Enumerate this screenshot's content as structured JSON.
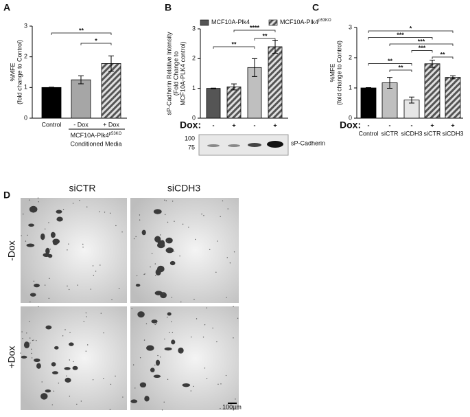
{
  "chart_data": [
    {
      "type": "bar",
      "panel_label": "A",
      "ylabel": [
        "%MFE",
        "(fold change to Control)"
      ],
      "categories": [
        "Control",
        "- Dox",
        "+ Dox"
      ],
      "values": [
        1,
        1.25,
        1.78
      ],
      "errors": [
        0.01,
        0.13,
        0.25
      ],
      "colors": [
        "#000000",
        "#a6a6a6",
        "#8c8c8c"
      ],
      "hatched": [
        false,
        false,
        true
      ],
      "ylim": [
        0,
        3
      ],
      "yticks": [
        0,
        1,
        2,
        3
      ],
      "brackets": [
        {
          "label": "**",
          "from": 0,
          "to": 2
        },
        {
          "label": "*",
          "from": 1,
          "to": 2
        }
      ],
      "group_label": {
        "text": "MCF10A-Plk4",
        "sup": "p53KO",
        "line2": "Conditioned Media"
      }
    },
    {
      "type": "bar",
      "panel_label": "B",
      "ylabel": [
        "sP-Cadherin Relative Intensity",
        "(Fold Change to",
        "MCF10A-PLK4 control)"
      ],
      "legend": [
        {
          "name": "MCF10A-Plk4",
          "color": "#555555",
          "hatched": false
        },
        {
          "name": "MCF10A-Plk4",
          "sup": "p53KO",
          "color": "#8c8c8c",
          "hatched": true
        }
      ],
      "dox_label": "Dox:",
      "dox": [
        "-",
        "+",
        "-",
        "+"
      ],
      "values": [
        1,
        1.05,
        1.7,
        2.4
      ],
      "errors": [
        0.01,
        0.1,
        0.3,
        0.22
      ],
      "colors": [
        "#555555",
        "#bfbfbf",
        "#bfbfbf",
        "#8c8c8c"
      ],
      "hatched": [
        false,
        true,
        false,
        true
      ],
      "ylim": [
        0,
        3
      ],
      "yticks": [
        0,
        1,
        2,
        3
      ],
      "brackets": [
        {
          "label": "****",
          "from": 1,
          "to": 3
        },
        {
          "label": "**",
          "from": 2,
          "to": 3
        },
        {
          "label": "**",
          "from": 0,
          "to": 2
        }
      ],
      "blot": {
        "markers": [
          "100",
          "75"
        ],
        "label": "sP-Cadherin"
      }
    },
    {
      "type": "bar",
      "panel_label": "C",
      "ylabel": [
        "%MFE",
        "(fold change to Control)"
      ],
      "dox_label": "Dox:",
      "dox": [
        "-",
        "-",
        "-",
        "+",
        "+"
      ],
      "categories": [
        "Control",
        "siCTR",
        "siCDH3",
        "siCTR",
        "siCDH3"
      ],
      "values": [
        1,
        1.17,
        0.6,
        1.8,
        1.35
      ],
      "errors": [
        0.01,
        0.18,
        0.1,
        0.12,
        0.05
      ],
      "colors": [
        "#000000",
        "#bfbfbf",
        "#e6e6e6",
        "#8c8c8c",
        "#cfcfcf"
      ],
      "hatched": [
        false,
        false,
        false,
        true,
        true
      ],
      "ylim": [
        0,
        3
      ],
      "yticks": [
        0,
        1,
        2,
        3
      ],
      "brackets": [
        {
          "label": "*",
          "from": 0,
          "to": 4
        },
        {
          "label": "***",
          "from": 0,
          "to": 3
        },
        {
          "label": "***",
          "from": 1,
          "to": 4
        },
        {
          "label": "***",
          "from": 2,
          "to": 3
        },
        {
          "label": "**",
          "from": 3,
          "to": 4
        },
        {
          "label": "**",
          "from": 0,
          "to": 2
        },
        {
          "label": "**",
          "from": 1,
          "to": 2
        }
      ]
    }
  ],
  "panel_d": {
    "panel_label": "D",
    "columns": [
      "siCTR",
      "siCDH3"
    ],
    "rows": [
      "-Dox",
      "+Dox"
    ],
    "scale_bar": "100µm"
  }
}
